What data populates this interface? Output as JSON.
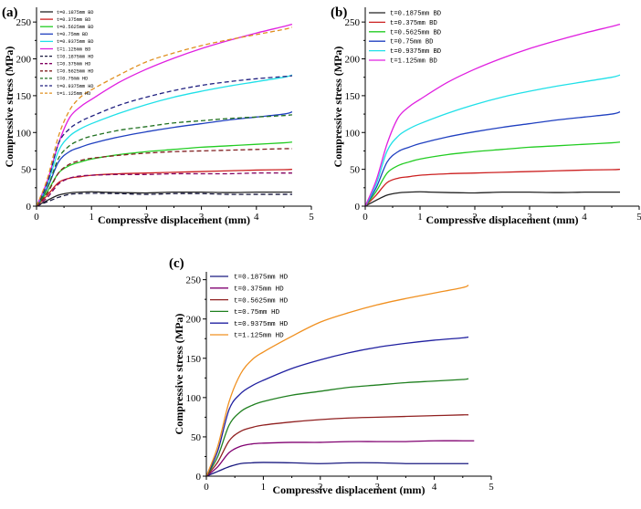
{
  "chart_data": [
    {
      "panel": "(a)",
      "type": "line",
      "xlabel": "Compressive displacement (mm)",
      "ylabel": "Compressive stress (MPa)",
      "xlim": [
        0,
        5
      ],
      "ylim": [
        0,
        270
      ],
      "xticks": [
        0,
        1,
        2,
        3,
        4,
        5
      ],
      "yticks": [
        0,
        50,
        100,
        150,
        200,
        250
      ],
      "legend_position": "top-left",
      "series": [
        {
          "name": "t=0.1875mm BD",
          "color": "#222222",
          "dash": "solid",
          "x": [
            0,
            0.2,
            0.4,
            0.6,
            0.8,
            1.0,
            1.2,
            1.5,
            2.0,
            2.5,
            3.0,
            3.5,
            4.0,
            4.5,
            4.65
          ],
          "y": [
            0,
            8,
            15,
            18,
            19,
            19.5,
            19,
            18.5,
            18,
            19,
            19,
            18.5,
            19,
            19,
            19
          ]
        },
        {
          "name": "t=0.375mm BD",
          "color": "#cc2020",
          "dash": "solid",
          "x": [
            0,
            0.2,
            0.4,
            0.6,
            0.8,
            1.0,
            1.5,
            2.0,
            2.5,
            3.0,
            3.5,
            4.0,
            4.5,
            4.65
          ],
          "y": [
            0,
            15,
            32,
            38,
            40,
            42,
            44,
            45,
            46,
            47,
            48,
            49,
            49.5,
            50
          ]
        },
        {
          "name": "t=0.5625mm BD",
          "color": "#22cc22",
          "dash": "solid",
          "x": [
            0,
            0.2,
            0.4,
            0.6,
            0.8,
            1.0,
            1.5,
            2.0,
            2.5,
            3.0,
            3.5,
            4.0,
            4.5,
            4.65
          ],
          "y": [
            0,
            20,
            45,
            55,
            60,
            64,
            70,
            74,
            77,
            80,
            82,
            84,
            86,
            87
          ]
        },
        {
          "name": "t=0.75mm BD",
          "color": "#2040c0",
          "dash": "solid",
          "x": [
            0,
            0.2,
            0.4,
            0.6,
            0.8,
            1.0,
            1.5,
            2.0,
            2.5,
            3.0,
            3.5,
            4.0,
            4.5,
            4.65
          ],
          "y": [
            0,
            25,
            60,
            74,
            80,
            85,
            94,
            101,
            107,
            112,
            117,
            121,
            125,
            128
          ]
        },
        {
          "name": "t=0.9375mm BD",
          "color": "#20e0e8",
          "dash": "solid",
          "x": [
            0,
            0.2,
            0.4,
            0.6,
            0.8,
            1.0,
            1.5,
            2.0,
            2.5,
            3.0,
            3.5,
            4.0,
            4.5,
            4.65
          ],
          "y": [
            0,
            30,
            75,
            95,
            105,
            112,
            126,
            138,
            148,
            156,
            163,
            169,
            175,
            178
          ]
        },
        {
          "name": "t=1.125mm BD",
          "color": "#e020e0",
          "dash": "solid",
          "x": [
            0,
            0.2,
            0.4,
            0.6,
            0.8,
            1.0,
            1.5,
            2.0,
            2.5,
            3.0,
            3.5,
            4.0,
            4.5,
            4.65
          ],
          "y": [
            0,
            35,
            85,
            120,
            135,
            145,
            168,
            186,
            201,
            214,
            225,
            235,
            244,
            247
          ]
        },
        {
          "name": "t=0.1875mm HD",
          "color": "#1a1a40",
          "dash": "dashed",
          "x": [
            0,
            0.2,
            0.4,
            0.6,
            0.8,
            1.0,
            1.5,
            2.0,
            2.5,
            3.0,
            3.5,
            4.0,
            4.5,
            4.65
          ],
          "y": [
            0,
            6,
            12,
            16,
            17,
            17.5,
            17,
            16,
            17,
            17,
            16,
            16,
            16,
            16
          ]
        },
        {
          "name": "t=0.375mm HD",
          "color": "#800060",
          "dash": "dashed",
          "x": [
            0,
            0.2,
            0.4,
            0.6,
            0.8,
            1.0,
            1.5,
            2.0,
            2.5,
            3.0,
            3.5,
            4.0,
            4.5,
            4.65
          ],
          "y": [
            0,
            12,
            30,
            38,
            41,
            42,
            43,
            43,
            44,
            44,
            44,
            45,
            45,
            45
          ]
        },
        {
          "name": "t=0.5625mm HD",
          "color": "#802020",
          "dash": "dashed",
          "x": [
            0,
            0.2,
            0.4,
            0.6,
            0.8,
            1.0,
            1.5,
            2.0,
            2.5,
            3.0,
            3.5,
            4.0,
            4.5,
            4.65
          ],
          "y": [
            0,
            18,
            45,
            57,
            62,
            65,
            69,
            72,
            74,
            75,
            76,
            77,
            78,
            78
          ]
        },
        {
          "name": "t=0.75mm HD",
          "color": "#207020",
          "dash": "dashed",
          "x": [
            0,
            0.2,
            0.4,
            0.6,
            0.8,
            1.0,
            1.5,
            2.0,
            2.5,
            3.0,
            3.5,
            4.0,
            4.5,
            4.65
          ],
          "y": [
            0,
            25,
            65,
            82,
            90,
            95,
            103,
            108,
            113,
            116,
            119,
            121,
            123,
            124
          ]
        },
        {
          "name": "t=0.9375mm HD",
          "color": "#202080",
          "dash": "dashed",
          "x": [
            0,
            0.2,
            0.4,
            0.6,
            0.8,
            1.0,
            1.5,
            2.0,
            2.5,
            3.0,
            3.5,
            4.0,
            4.5,
            4.65
          ],
          "y": [
            0,
            32,
            85,
            105,
            115,
            122,
            137,
            148,
            157,
            164,
            169,
            173,
            176,
            177
          ]
        },
        {
          "name": "t=1.125mm HD",
          "color": "#e09020",
          "dash": "dashed",
          "x": [
            0,
            0.2,
            0.4,
            0.6,
            0.8,
            1.0,
            1.5,
            2.0,
            2.5,
            3.0,
            3.5,
            4.0,
            4.5,
            4.65
          ],
          "y": [
            0,
            38,
            95,
            130,
            148,
            158,
            178,
            196,
            208,
            218,
            226,
            233,
            240,
            243
          ]
        }
      ]
    },
    {
      "panel": "(b)",
      "type": "line",
      "xlabel": "Compressive displacement (mm)",
      "ylabel": "Compressive stress (MPa)",
      "xlim": [
        0,
        5
      ],
      "ylim": [
        0,
        270
      ],
      "xticks": [
        0,
        1,
        2,
        3,
        4,
        5
      ],
      "yticks": [
        0,
        50,
        100,
        150,
        200,
        250
      ],
      "legend_position": "top-left",
      "series": [
        {
          "name": "t=0.1875mm BD",
          "color": "#222222",
          "dash": "solid",
          "x": [
            0,
            0.2,
            0.4,
            0.6,
            0.8,
            1.0,
            1.2,
            1.5,
            2.0,
            2.5,
            3.0,
            3.5,
            4.0,
            4.5,
            4.65
          ],
          "y": [
            0,
            8,
            15,
            18,
            19,
            19.5,
            19,
            18.5,
            18,
            19,
            19,
            18.5,
            19,
            19,
            19
          ]
        },
        {
          "name": "t=0.375mm BD",
          "color": "#cc2020",
          "dash": "solid",
          "x": [
            0,
            0.2,
            0.4,
            0.6,
            0.8,
            1.0,
            1.5,
            2.0,
            2.5,
            3.0,
            3.5,
            4.0,
            4.5,
            4.65
          ],
          "y": [
            0,
            15,
            32,
            38,
            40,
            42,
            44,
            45,
            46,
            47,
            48,
            49,
            49.5,
            50
          ]
        },
        {
          "name": "t=0.5625mm BD",
          "color": "#22cc22",
          "dash": "solid",
          "x": [
            0,
            0.2,
            0.4,
            0.6,
            0.8,
            1.0,
            1.5,
            2.0,
            2.5,
            3.0,
            3.5,
            4.0,
            4.5,
            4.65
          ],
          "y": [
            0,
            20,
            45,
            55,
            60,
            64,
            70,
            74,
            77,
            80,
            82,
            84,
            86,
            87
          ]
        },
        {
          "name": "t=0.75mm BD",
          "color": "#2040c0",
          "dash": "solid",
          "x": [
            0,
            0.2,
            0.4,
            0.6,
            0.8,
            1.0,
            1.5,
            2.0,
            2.5,
            3.0,
            3.5,
            4.0,
            4.5,
            4.65
          ],
          "y": [
            0,
            25,
            60,
            74,
            80,
            85,
            94,
            101,
            107,
            112,
            117,
            121,
            125,
            128
          ]
        },
        {
          "name": "t=0.9375mm BD",
          "color": "#20e0e8",
          "dash": "solid",
          "x": [
            0,
            0.2,
            0.4,
            0.6,
            0.8,
            1.0,
            1.5,
            2.0,
            2.5,
            3.0,
            3.5,
            4.0,
            4.5,
            4.65
          ],
          "y": [
            0,
            30,
            75,
            95,
            105,
            112,
            126,
            138,
            148,
            156,
            163,
            169,
            175,
            178
          ]
        },
        {
          "name": "t=1.125mm BD",
          "color": "#e020e0",
          "dash": "solid",
          "x": [
            0,
            0.2,
            0.4,
            0.6,
            0.8,
            1.0,
            1.5,
            2.0,
            2.5,
            3.0,
            3.5,
            4.0,
            4.5,
            4.65
          ],
          "y": [
            0,
            35,
            85,
            120,
            135,
            145,
            168,
            186,
            201,
            214,
            225,
            235,
            244,
            247
          ]
        }
      ]
    },
    {
      "panel": "(c)",
      "type": "line",
      "xlabel": "Compressive displacement (mm)",
      "ylabel": "Compressive stress (MPa)",
      "xlim": [
        0,
        5
      ],
      "ylim": [
        0,
        260
      ],
      "xticks": [
        0,
        1,
        2,
        3,
        4,
        5
      ],
      "yticks": [
        0,
        50,
        100,
        150,
        200,
        250
      ],
      "legend_position": "top-left",
      "series": [
        {
          "name": "t=0.1875mm HD",
          "color": "#1a1a80",
          "dash": "solid",
          "x": [
            0,
            0.2,
            0.4,
            0.6,
            0.8,
            1.0,
            1.5,
            2.0,
            2.5,
            3.0,
            3.5,
            4.0,
            4.5,
            4.6
          ],
          "y": [
            0,
            6,
            12,
            16,
            17,
            17.5,
            17,
            16,
            17,
            17,
            16,
            16,
            16,
            16
          ]
        },
        {
          "name": "t=0.375mm HD",
          "color": "#800070",
          "dash": "solid",
          "x": [
            0,
            0.2,
            0.4,
            0.6,
            0.8,
            1.0,
            1.5,
            2.0,
            2.5,
            3.0,
            3.5,
            4.0,
            4.5,
            4.7
          ],
          "y": [
            0,
            12,
            30,
            38,
            41,
            42,
            43,
            43,
            44,
            44,
            44,
            45,
            45,
            45
          ]
        },
        {
          "name": "t=0.5625mm HD",
          "color": "#902020",
          "dash": "solid",
          "x": [
            0,
            0.2,
            0.4,
            0.6,
            0.8,
            1.0,
            1.5,
            2.0,
            2.5,
            3.0,
            3.5,
            4.0,
            4.5,
            4.6
          ],
          "y": [
            0,
            18,
            45,
            57,
            62,
            65,
            69,
            72,
            74,
            75,
            76,
            77,
            78,
            78
          ]
        },
        {
          "name": "t=0.75mm HD",
          "color": "#208020",
          "dash": "solid",
          "x": [
            0,
            0.2,
            0.4,
            0.6,
            0.8,
            1.0,
            1.5,
            2.0,
            2.5,
            3.0,
            3.5,
            4.0,
            4.5,
            4.6
          ],
          "y": [
            0,
            25,
            65,
            82,
            90,
            95,
            103,
            108,
            113,
            116,
            119,
            121,
            123,
            124
          ]
        },
        {
          "name": "t=0.9375mm HD",
          "color": "#2020a0",
          "dash": "solid",
          "x": [
            0,
            0.2,
            0.4,
            0.6,
            0.8,
            1.0,
            1.5,
            2.0,
            2.5,
            3.0,
            3.5,
            4.0,
            4.5,
            4.6
          ],
          "y": [
            0,
            32,
            85,
            105,
            115,
            122,
            137,
            148,
            157,
            164,
            169,
            173,
            176,
            177
          ]
        },
        {
          "name": "t=1.125mm HD",
          "color": "#f09020",
          "dash": "solid",
          "x": [
            0,
            0.2,
            0.4,
            0.6,
            0.8,
            1.0,
            1.5,
            2.0,
            2.5,
            3.0,
            3.5,
            4.0,
            4.5,
            4.6
          ],
          "y": [
            0,
            38,
            95,
            130,
            148,
            158,
            178,
            196,
            208,
            218,
            226,
            233,
            240,
            243
          ]
        }
      ]
    }
  ]
}
